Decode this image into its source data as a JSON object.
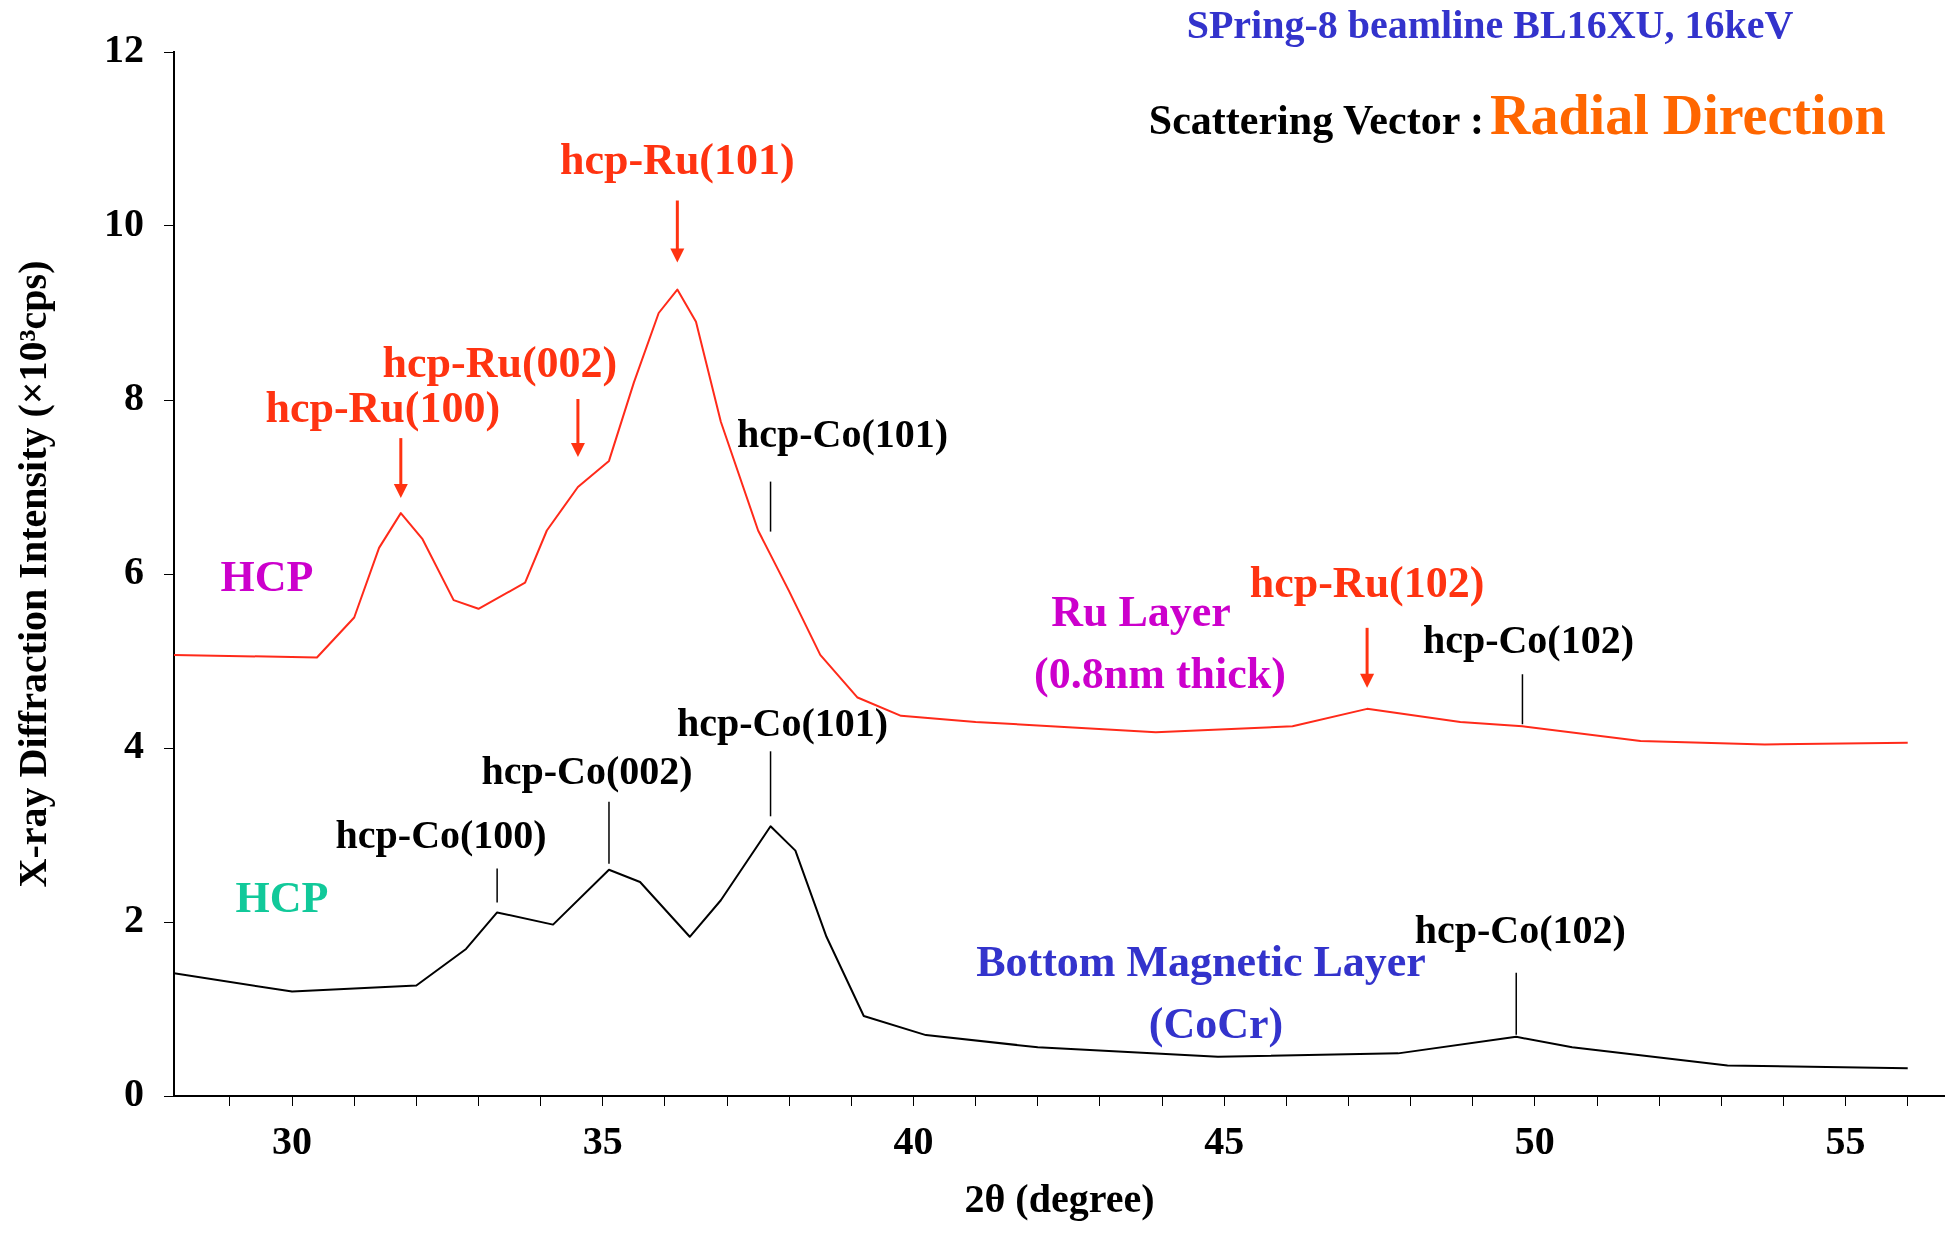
{
  "chart_data": {
    "type": "line",
    "title": "SPring-8 beamline BL16XU, 16keV",
    "xlabel": "2θ (degree)",
    "ylabel": "X-ray Diffraction Intensity (×10³cps)",
    "xlim": [
      28.1,
      56.6
    ],
    "ylim": [
      0,
      12
    ],
    "xticks": [
      {
        "value": 29,
        "label": null
      },
      30,
      {
        "value": 31,
        "label": null
      },
      {
        "value": 32,
        "label": null
      },
      {
        "value": 33,
        "label": null
      },
      {
        "value": 34,
        "label": null
      },
      35,
      {
        "value": 36,
        "label": null
      },
      {
        "value": 37,
        "label": null
      },
      {
        "value": 38,
        "label": null
      },
      {
        "value": 39,
        "label": null
      },
      40,
      {
        "value": 41,
        "label": null
      },
      {
        "value": 42,
        "label": null
      },
      {
        "value": 43,
        "label": null
      },
      {
        "value": 44,
        "label": null
      },
      45,
      {
        "value": 46,
        "label": null
      },
      {
        "value": 47,
        "label": null
      },
      {
        "value": 48,
        "label": null
      },
      {
        "value": 49,
        "label": null
      },
      50,
      {
        "value": 51,
        "label": null
      },
      {
        "value": 52,
        "label": null
      },
      {
        "value": 53,
        "label": null
      },
      {
        "value": 54,
        "label": null
      },
      55,
      {
        "value": 56,
        "label": null
      }
    ],
    "yticks": [
      0,
      2,
      4,
      6,
      8,
      10,
      12
    ],
    "grid": false,
    "legend": false,
    "marker": "none",
    "line_style": "solid",
    "series": [
      {
        "color": "#ff2a1a",
        "x": [
          28.1,
          30.4,
          31.0,
          31.4,
          31.75,
          32.1,
          32.6,
          33.0,
          33.75,
          34.1,
          34.6,
          35.1,
          35.5,
          35.9,
          36.2,
          36.5,
          36.9,
          37.5,
          38.0,
          38.5,
          39.1,
          39.8,
          41.0,
          43.9,
          46.1,
          47.3,
          48.8,
          49.8,
          51.7,
          53.7,
          56.0
        ],
        "values": [
          5.07,
          5.04,
          5.5,
          6.3,
          6.7,
          6.4,
          5.7,
          5.6,
          5.9,
          6.5,
          7.0,
          7.3,
          8.2,
          9.0,
          9.27,
          8.9,
          7.75,
          6.5,
          5.8,
          5.07,
          4.58,
          4.37,
          4.3,
          4.18,
          4.25,
          4.45,
          4.3,
          4.25,
          4.08,
          4.04,
          4.06
        ]
      },
      {
        "color": "#000000",
        "x": [
          28.1,
          30.0,
          32.0,
          32.8,
          33.3,
          34.2,
          35.1,
          35.6,
          36.4,
          36.9,
          37.7,
          38.1,
          38.6,
          39.2,
          40.2,
          42.0,
          44.9,
          47.8,
          49.7,
          50.6,
          53.1,
          56.0
        ],
        "values": [
          1.41,
          1.2,
          1.27,
          1.69,
          2.11,
          1.97,
          2.6,
          2.46,
          1.83,
          2.25,
          3.1,
          2.82,
          1.83,
          0.92,
          0.7,
          0.56,
          0.45,
          0.49,
          0.68,
          0.56,
          0.35,
          0.32
        ]
      }
    ],
    "annotations": [
      "Scattering Vector :",
      "Radial Direction",
      "HCP",
      "Ru Layer",
      "(0.8nm thick)",
      "HCP",
      "Bottom Magnetic Layer",
      "(CoCr)",
      {
        "text": "hcp-Ru(100)",
        "x": 31.75,
        "y": 6.7
      },
      {
        "text": "hcp-Ru(002)",
        "x": 34.6,
        "y": 7.0
      },
      {
        "text": "hcp-Ru(101)",
        "x": 36.2,
        "y": 9.27
      },
      {
        "text": "hcp-Ru(102)",
        "x": 47.3,
        "y": 4.45
      },
      {
        "text": "hcp-Co(101)",
        "x": 37.7,
        "y": 6.2
      },
      {
        "text": "hcp-Co(102)",
        "x": 49.8,
        "y": 4.25
      },
      {
        "text": "hcp-Co(100)",
        "x": 33.3,
        "y": 2.11
      },
      {
        "text": "hcp-Co(002)",
        "x": 35.1,
        "y": 2.6
      },
      {
        "text": "hcp-Co(101)",
        "x": 37.7,
        "y": 3.1
      },
      {
        "text": "hcp-Co(102)",
        "x": 49.7,
        "y": 0.68
      }
    ]
  }
}
